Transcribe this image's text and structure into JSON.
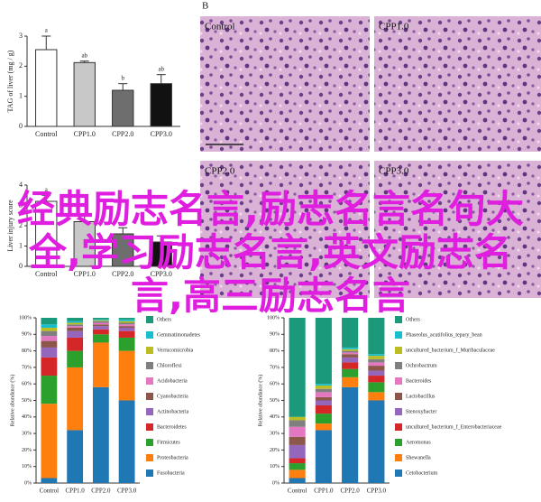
{
  "chart_data": [
    {
      "type": "bar",
      "ylabel": "TAG of liver (mg / g)",
      "categories": [
        "Control",
        "CPP1.0",
        "CPP2.0",
        "CPP3.0"
      ],
      "values": [
        2.55,
        2.12,
        1.2,
        1.42
      ],
      "errors": [
        0.45,
        0.05,
        0.22,
        0.3
      ],
      "letters": [
        "a",
        "ab",
        "b",
        "ab"
      ],
      "colors": [
        "#ffffff",
        "#c8c8c8",
        "#6e6e6e",
        "#111111"
      ],
      "ylim": [
        0,
        3
      ],
      "yticks": [
        0,
        1,
        2,
        3
      ]
    },
    {
      "type": "bar",
      "ylabel": "Liver injury score",
      "categories": [
        "Control",
        "CPP1.0",
        "CPP2.0",
        "CPP3.0"
      ],
      "values": [
        3.2,
        2.2,
        1.6,
        1.2
      ],
      "errors": [
        0.3,
        0.3,
        0.3,
        0.3
      ],
      "letters": [
        "a",
        null,
        null,
        null
      ],
      "colors": [
        "#ffffff",
        "#c8c8c8",
        "#6e6e6e",
        "#111111"
      ],
      "ylim": [
        0,
        4
      ],
      "yticks": [
        0,
        1,
        2,
        3,
        4
      ]
    },
    {
      "type": "stacked_bar",
      "ylabel": "Relative abundance (%)",
      "categories": [
        "Control",
        "CPP1.0",
        "CPP2.0",
        "CPP3.0"
      ],
      "ylim": [
        0,
        100
      ],
      "yticks": [
        {
          "value": 0,
          "label": "0%"
        },
        {
          "value": 10,
          "label": "10%"
        },
        {
          "value": 20,
          "label": "20%"
        },
        {
          "value": 30,
          "label": "30%"
        },
        {
          "value": 40,
          "label": "40%"
        },
        {
          "value": 50,
          "label": "50%"
        },
        {
          "value": 60,
          "label": "60%"
        },
        {
          "value": 70,
          "label": "70%"
        },
        {
          "value": 80,
          "label": "80%"
        },
        {
          "value": 90,
          "label": "90%"
        },
        {
          "value": 100,
          "label": "100%"
        }
      ],
      "series": [
        {
          "name": "Others",
          "color": "#1a9a7a",
          "values": [
            4,
            2,
            1,
            1
          ]
        },
        {
          "name": "Gemmatimonadetes",
          "color": "#17becf",
          "values": [
            2,
            1,
            0.5,
            1
          ]
        },
        {
          "name": "Verrucomicrobia",
          "color": "#bcbd22",
          "values": [
            2,
            1,
            0.5,
            1
          ]
        },
        {
          "name": "Chloroflexi",
          "color": "#7f7f7f",
          "values": [
            3,
            1,
            1,
            1
          ]
        },
        {
          "name": "Acidobacteria",
          "color": "#e377c2",
          "values": [
            3,
            1,
            1,
            1
          ]
        },
        {
          "name": "Cyanobacteria",
          "color": "#8c564b",
          "values": [
            4,
            2,
            1,
            1
          ]
        },
        {
          "name": "Actinobacteria",
          "color": "#9467bd",
          "values": [
            6,
            4,
            2,
            2
          ]
        },
        {
          "name": "Bacteroidetes",
          "color": "#d62728",
          "values": [
            11,
            8,
            3,
            4
          ]
        },
        {
          "name": "Firmicutes",
          "color": "#2ca02c",
          "values": [
            17,
            10,
            5,
            8
          ]
        },
        {
          "name": "Proteobacteria",
          "color": "#ff7f0e",
          "values": [
            45,
            38,
            27,
            30
          ]
        },
        {
          "name": "Fusobacteria",
          "color": "#1f77b4",
          "values": [
            3,
            32,
            58,
            50
          ]
        }
      ]
    },
    {
      "type": "stacked_bar",
      "ylabel": "Relative abundance (%)",
      "categories": [
        "Control",
        "CPP1.0",
        "CPP2.0",
        "CPP3.0"
      ],
      "ylim": [
        0,
        100
      ],
      "yticks": [
        {
          "value": 0,
          "label": "0%"
        },
        {
          "value": 10,
          "label": "10%"
        },
        {
          "value": 20,
          "label": "20%"
        },
        {
          "value": 30,
          "label": "30%"
        },
        {
          "value": 40,
          "label": "40%"
        },
        {
          "value": 50,
          "label": "50%"
        },
        {
          "value": 60,
          "label": "60%"
        },
        {
          "value": 70,
          "label": "70%"
        },
        {
          "value": 80,
          "label": "80%"
        },
        {
          "value": 90,
          "label": "90%"
        },
        {
          "value": 100,
          "label": "100%"
        }
      ],
      "series": [
        {
          "name": "Others",
          "color": "#1a9a7a",
          "values": [
            60,
            40,
            18,
            22
          ]
        },
        {
          "name": "Phaseolus_acutifolius_tepary_bean",
          "color": "#17becf",
          "values": [
            0,
            1,
            1,
            1
          ]
        },
        {
          "name": "uncultured_bacterium_f_Muribaculaceae",
          "color": "#bcbd22",
          "values": [
            2,
            2,
            1,
            2
          ]
        },
        {
          "name": "Ochrobactrum",
          "color": "#7f7f7f",
          "values": [
            4,
            2,
            1,
            2
          ]
        },
        {
          "name": "Bacteroides",
          "color": "#e377c2",
          "values": [
            6,
            3,
            1,
            2
          ]
        },
        {
          "name": "Lactobacillus",
          "color": "#8c564b",
          "values": [
            5,
            2,
            2,
            3
          ]
        },
        {
          "name": "Stenoxybacter",
          "color": "#9467bd",
          "values": [
            8,
            3,
            3,
            3
          ]
        },
        {
          "name": "uncultured_bacterium_f_Enterobacteriaceae",
          "color": "#d62728",
          "values": [
            3,
            5,
            4,
            4
          ]
        },
        {
          "name": "Aeromonas",
          "color": "#2ca02c",
          "values": [
            4,
            6,
            5,
            6
          ]
        },
        {
          "name": "Shewanella",
          "color": "#ff7f0e",
          "values": [
            5,
            4,
            6,
            5
          ]
        },
        {
          "name": "Cetobacterium",
          "color": "#1f77b4",
          "values": [
            3,
            32,
            58,
            50
          ]
        }
      ]
    }
  ],
  "panels": {
    "letter": "B",
    "labels": [
      "Control",
      "CPP1.0",
      "CPP2.0",
      "CPP3.0"
    ]
  },
  "overlay": {
    "text": "经典励志名言,励志名言名句大全,学习励志名言,英文励志名言,高三励志名言"
  }
}
